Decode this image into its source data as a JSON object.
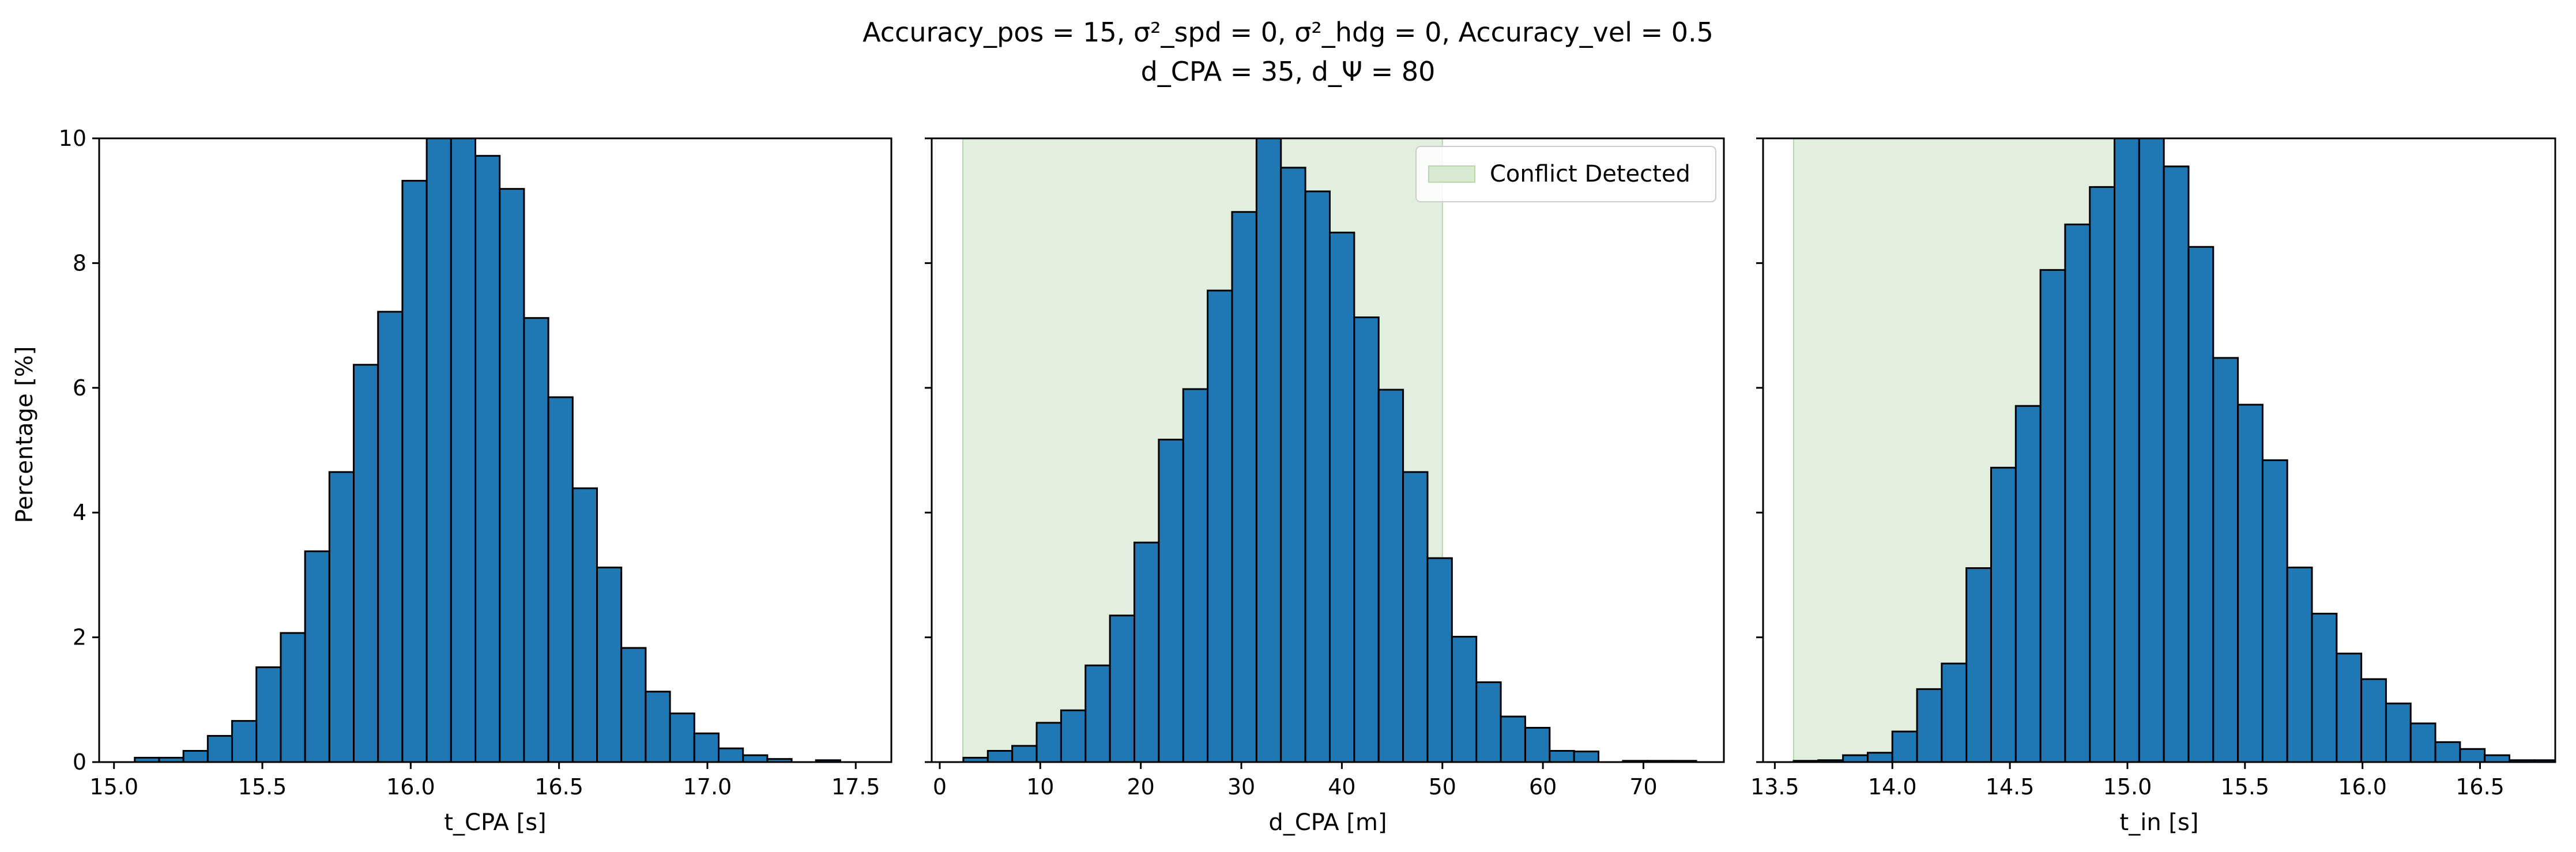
{
  "figure": {
    "title": {
      "line1": "Accuracy_pos = 15, σ²_spd = 0, σ²_hdg = 0, Accuracy_vel = 0.5",
      "line2": "d_CPA = 35, d_Ψ = 80"
    },
    "shared_ylabel": "Percentage [%]",
    "colors": {
      "bar": "#1f77b4",
      "edge": "#000000",
      "shade": "#d9ead3",
      "shade_edge": "#b7d7a8"
    }
  },
  "chart_data": [
    {
      "type": "bar",
      "subtype": "histogram",
      "xlabel": "t_CPA [s]",
      "ylabel": "Percentage [%]",
      "xlim": [
        14.95,
        17.62
      ],
      "ylim": [
        0,
        10
      ],
      "xticks": [
        15.0,
        15.5,
        16.0,
        16.5,
        17.0,
        17.5
      ],
      "xtick_labels": [
        "15.0",
        "15.5",
        "16.0",
        "16.5",
        "17.0",
        "17.5"
      ],
      "yticks": [
        0,
        2,
        4,
        6,
        8,
        10
      ],
      "ytick_labels": [
        "0",
        "2",
        "4",
        "6",
        "8",
        "10"
      ],
      "bin_start": 15.07,
      "bin_width": 0.082,
      "values": [
        0.07,
        0.07,
        0.18,
        0.42,
        0.66,
        1.52,
        2.07,
        3.38,
        4.65,
        6.37,
        7.22,
        9.32,
        10.0,
        10.0,
        9.72,
        9.19,
        7.12,
        5.85,
        4.39,
        3.12,
        1.83,
        1.13,
        0.78,
        0.46,
        0.22,
        0.11,
        0.05,
        0.0,
        0.03
      ],
      "shaded_region": null,
      "legend": null
    },
    {
      "type": "bar",
      "subtype": "histogram",
      "xlabel": "d_CPA [m]",
      "ylabel": "",
      "xlim": [
        -0.8,
        78.0
      ],
      "ylim": [
        0,
        10
      ],
      "xticks": [
        0,
        10,
        20,
        30,
        40,
        50,
        60,
        70
      ],
      "xtick_labels": [
        "0",
        "10",
        "20",
        "30",
        "40",
        "50",
        "60",
        "70"
      ],
      "yticks": [
        0,
        2,
        4,
        6,
        8,
        10
      ],
      "ytick_labels": [
        "",
        "",
        "",
        "",
        "",
        ""
      ],
      "bin_start": 2.35,
      "bin_width": 2.43,
      "values": [
        0.07,
        0.18,
        0.26,
        0.63,
        0.83,
        1.55,
        2.35,
        3.52,
        5.17,
        5.98,
        7.56,
        8.82,
        10.0,
        9.53,
        9.15,
        8.49,
        7.13,
        5.97,
        4.65,
        3.27,
        2.01,
        1.28,
        0.73,
        0.55,
        0.18,
        0.17,
        0.0,
        0.02,
        0.02,
        0.02
      ],
      "shaded_region": [
        2.3,
        50.0
      ],
      "legend": {
        "label": "Conflict Detected",
        "position": "upper right"
      }
    },
    {
      "type": "bar",
      "subtype": "histogram",
      "xlabel": "t_in [s]",
      "ylabel": "",
      "xlim": [
        13.45,
        16.82
      ],
      "ylim": [
        0,
        10
      ],
      "xticks": [
        13.5,
        14.0,
        14.5,
        15.0,
        15.5,
        16.0,
        16.5
      ],
      "xtick_labels": [
        "13.5",
        "14.0",
        "14.5",
        "15.0",
        "15.5",
        "16.0",
        "16.5"
      ],
      "yticks": [
        0,
        2,
        4,
        6,
        8,
        10
      ],
      "ytick_labels": [
        "",
        "",
        "",
        "",
        "",
        ""
      ],
      "bin_start": 13.58,
      "bin_width": 0.105,
      "values": [
        0.02,
        0.03,
        0.11,
        0.15,
        0.49,
        1.17,
        1.58,
        3.11,
        4.72,
        5.71,
        7.89,
        8.62,
        9.22,
        10.0,
        10.0,
        9.55,
        8.26,
        6.48,
        5.73,
        4.84,
        3.12,
        2.38,
        1.74,
        1.33,
        0.94,
        0.62,
        0.32,
        0.21,
        0.11,
        0.03,
        0.03
      ],
      "shaded_region": [
        13.58,
        15.02
      ],
      "legend": null
    }
  ]
}
